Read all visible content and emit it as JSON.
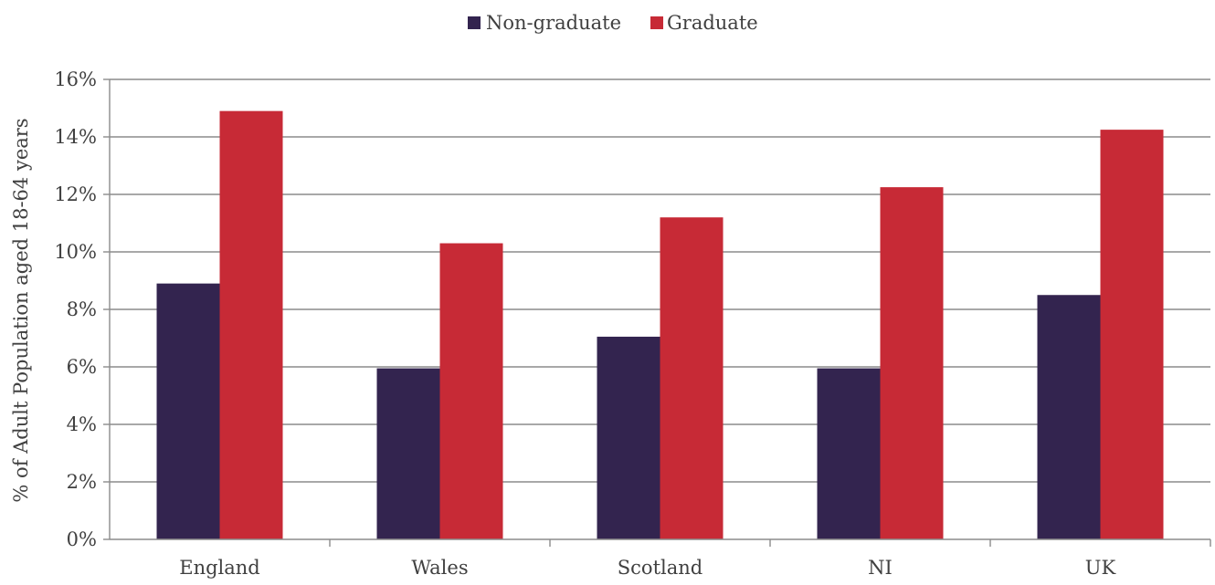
{
  "chart_data": {
    "type": "bar",
    "title": "",
    "xlabel": "",
    "ylabel": "% of Adult Population aged 18-64 years",
    "categories": [
      "England",
      "Wales",
      "Scotland",
      "NI",
      "UK"
    ],
    "series": [
      {
        "name": "Non-graduate",
        "color": "#33244f",
        "values": [
          8.9,
          5.95,
          7.05,
          5.95,
          8.5
        ]
      },
      {
        "name": "Graduate",
        "color": "#c72a36",
        "values": [
          14.9,
          10.3,
          11.2,
          12.25,
          14.25
        ]
      }
    ],
    "ylim": [
      0,
      16
    ],
    "yticks": [
      0,
      2,
      4,
      6,
      8,
      10,
      12,
      14,
      16
    ],
    "ytick_labels": [
      "0%",
      "2%",
      "4%",
      "6%",
      "8%",
      "10%",
      "12%",
      "14%",
      "16%"
    ],
    "grid": true,
    "legend_position": "top-center"
  }
}
